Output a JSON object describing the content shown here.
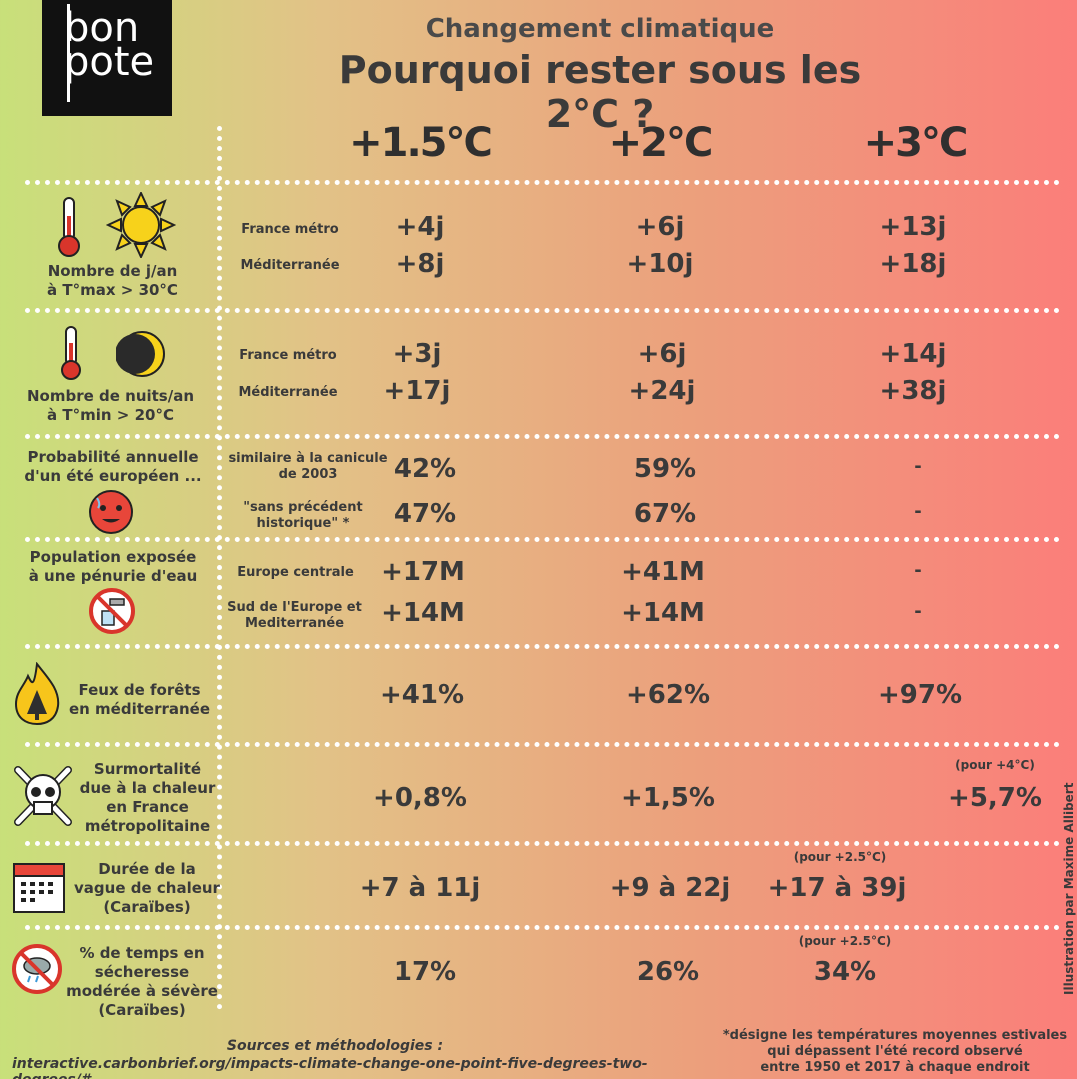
{
  "logo": {
    "line1": "bon",
    "line2": "pote"
  },
  "title": {
    "subtitle": "Changement climatique",
    "main": "Pourquoi rester sous les 2°C ?"
  },
  "columns": [
    "+1.5°C",
    "+2°C",
    "+3°C"
  ],
  "rows": {
    "hot_days": {
      "label": [
        "Nombre de j/an",
        "à T°max > 30°C"
      ],
      "sub1": "France métro",
      "sub2": "Méditerranée",
      "v1": [
        "+4j",
        "+6j",
        "+13j"
      ],
      "v2": [
        "+8j",
        "+10j",
        "+18j"
      ]
    },
    "hot_nights": {
      "label": [
        "Nombre de nuits/an",
        "à T°min > 20°C"
      ],
      "sub1": "France métro",
      "sub2": "Méditerranée",
      "v1": [
        "+3j",
        "+6j",
        "+14j"
      ],
      "v2": [
        "+17j",
        "+24j",
        "+38j"
      ]
    },
    "summer": {
      "label": [
        "Probabilité annuelle",
        "d'un été européen ..."
      ],
      "sub1": [
        "similaire à la canicule",
        "de 2003"
      ],
      "sub2": [
        "\"sans précédent",
        "historique\" *"
      ],
      "v1": [
        "42%",
        "59%",
        "-"
      ],
      "v2": [
        "47%",
        "67%",
        "-"
      ]
    },
    "water": {
      "label": [
        "Population exposée",
        "à une pénurie d'eau"
      ],
      "sub1": "Europe centrale",
      "sub2": [
        "Sud de l'Europe et",
        "Mediterranée"
      ],
      "v1": [
        "+17M",
        "+41M",
        "-"
      ],
      "v2": [
        "+14M",
        "+14M",
        "-"
      ]
    },
    "fires": {
      "label": [
        "Feux de forêts",
        "en méditerranée"
      ],
      "v": [
        "+41%",
        "+62%",
        "+97%"
      ]
    },
    "mortality": {
      "label": [
        "Surmortalité",
        "due à la chaleur",
        "en France",
        "métropolitaine"
      ],
      "v": [
        "+0,8%",
        "+1,5%",
        "+5,7%"
      ],
      "note": "(pour +4°C)"
    },
    "heatwave": {
      "label": [
        "Durée de la",
        "vague de chaleur",
        "(Caraïbes)"
      ],
      "v": [
        "+7 à 11j",
        "+9 à 22j",
        "+17 à 39j"
      ],
      "note": "(pour +2.5°C)"
    },
    "drought": {
      "label": [
        "% de temps en",
        "sécheresse",
        "modérée à sévère",
        "(Caraïbes)"
      ],
      "v": [
        "17%",
        "26%",
        "34%"
      ],
      "note": "(pour +2.5°C)"
    }
  },
  "sources": {
    "title": "Sources et méthodologies :",
    "url": "interactive.carbonbrief.org/impacts-climate-change-one-point-five-degrees-two-degrees/#"
  },
  "footnote": [
    "*désigne les températures moyennes estivales",
    "qui dépassent l'été record observé",
    "entre 1950 et 2017 à chaque endroit"
  ],
  "credit": "Illustration par Maxime Allibert"
}
